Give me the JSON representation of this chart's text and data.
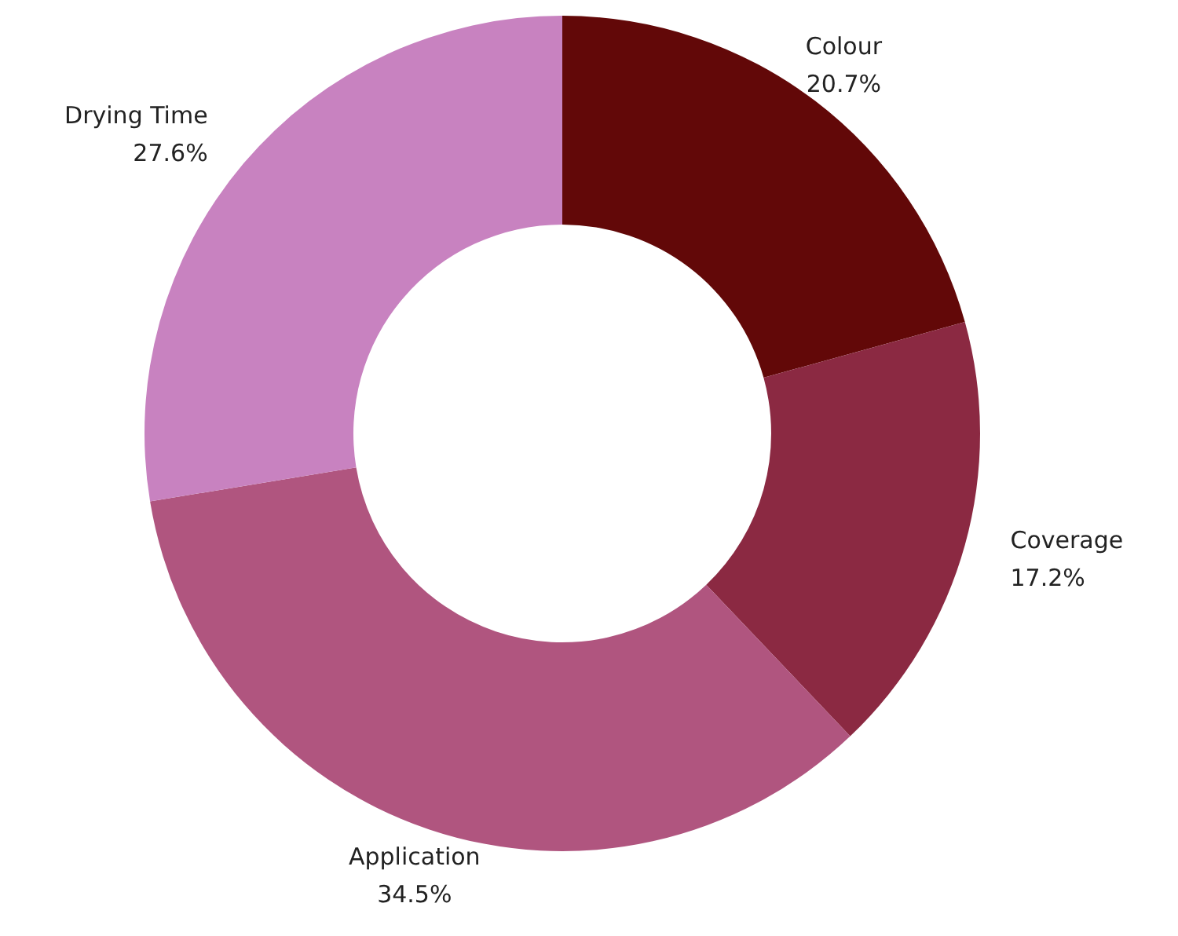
{
  "chart_data": {
    "type": "donut",
    "categories": [
      "Colour",
      "Coverage",
      "Application",
      "Drying Time"
    ],
    "values": [
      20.7,
      17.2,
      34.5,
      27.6
    ],
    "value_labels": [
      "20.7%",
      "17.2%",
      "34.5%",
      "27.6%"
    ],
    "colors": [
      "#620808",
      "#8b2942",
      "#b0557f",
      "#c882c0"
    ]
  }
}
